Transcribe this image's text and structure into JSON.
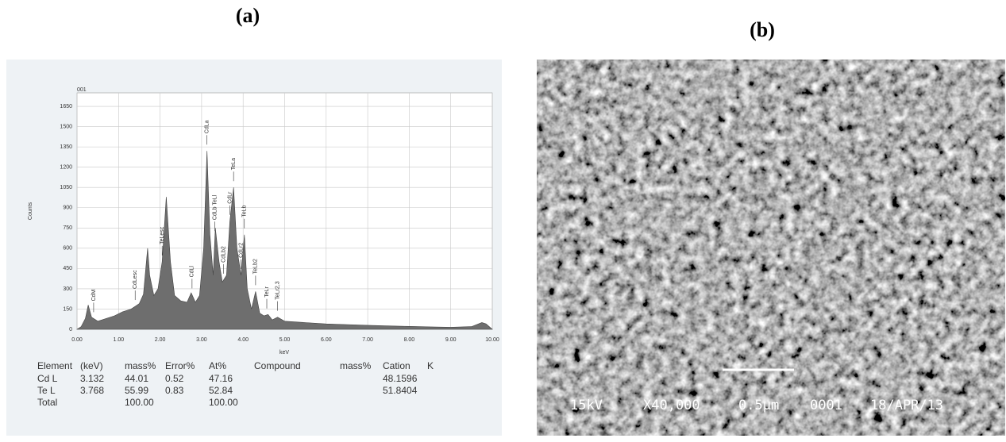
{
  "panel_a": {
    "label": "(a)"
  },
  "panel_b": {
    "label": "(b)",
    "sem_info": [
      "15kV",
      "X40,000",
      "0.5μm",
      "0001",
      "18/APR/13"
    ]
  },
  "chart_data": {
    "type": "area",
    "title": "001",
    "x_label": "keV",
    "y_label": "Counts",
    "color": "#6e6e6e",
    "grid": true,
    "xlim": [
      0,
      10
    ],
    "ylim": [
      0,
      1750
    ],
    "xticks": [
      {
        "value": 0,
        "label": "0.00"
      },
      {
        "value": 1,
        "label": "1.00"
      },
      {
        "value": 2,
        "label": "2.00"
      },
      {
        "value": 3,
        "label": "3.00"
      },
      {
        "value": 4,
        "label": "4.00"
      },
      {
        "value": 5,
        "label": "5.00"
      },
      {
        "value": 6,
        "label": "6.00"
      },
      {
        "value": 7,
        "label": "7.00"
      },
      {
        "value": 8,
        "label": "8.00"
      },
      {
        "value": 9,
        "label": "9.00"
      },
      {
        "value": 10,
        "label": "10.00"
      }
    ],
    "yticks": [
      0,
      150,
      300,
      450,
      600,
      750,
      900,
      1050,
      1200,
      1350,
      1500,
      1650
    ],
    "x": [
      0,
      0.1,
      0.2,
      0.27,
      0.35,
      0.5,
      0.7,
      0.9,
      1.1,
      1.3,
      1.4,
      1.5,
      1.6,
      1.7,
      1.75,
      1.85,
      1.95,
      2.05,
      2.15,
      2.25,
      2.35,
      2.5,
      2.65,
      2.75,
      2.85,
      2.95,
      3.05,
      3.13,
      3.2,
      3.28,
      3.33,
      3.42,
      3.5,
      3.6,
      3.68,
      3.77,
      3.85,
      3.95,
      4.03,
      4.1,
      4.2,
      4.3,
      4.4,
      4.5,
      4.6,
      4.7,
      4.83,
      5,
      5.5,
      6,
      6.5,
      7,
      7.5,
      8,
      8.5,
      9,
      9.5,
      9.75,
      9.85,
      10
    ],
    "values": [
      0,
      20,
      80,
      180,
      90,
      60,
      80,
      100,
      130,
      150,
      170,
      190,
      260,
      600,
      400,
      250,
      300,
      500,
      980,
      500,
      250,
      210,
      200,
      270,
      200,
      250,
      600,
      1320,
      700,
      400,
      750,
      500,
      350,
      400,
      800,
      1050,
      600,
      400,
      700,
      300,
      150,
      280,
      120,
      100,
      110,
      70,
      90,
      60,
      50,
      40,
      35,
      30,
      25,
      22,
      18,
      15,
      20,
      50,
      40,
      0
    ],
    "annotations": [
      {
        "text": "CdM",
        "x": 0.4
      },
      {
        "text": "CdLesc",
        "x": 1.4
      },
      {
        "text": "TeLesc",
        "x": 2.05
      },
      {
        "text": "CdLl",
        "x": 2.77
      },
      {
        "text": "CdLa",
        "x": 3.13
      },
      {
        "text": "CdLb TeLl",
        "x": 3.32
      },
      {
        "text": "CdLb2",
        "x": 3.53
      },
      {
        "text": "CdLr",
        "x": 3.68
      },
      {
        "text": "TeLa",
        "x": 3.77
      },
      {
        "text": "CdLr2",
        "x": 3.95
      },
      {
        "text": "TeLb",
        "x": 4.03
      },
      {
        "text": "TeLb2",
        "x": 4.3
      },
      {
        "text": "TeLr",
        "x": 4.57
      },
      {
        "text": "TeLr2,3",
        "x": 4.83
      }
    ]
  },
  "table": {
    "header": [
      "Element",
      "(keV)",
      "mass%",
      "Error%",
      "At%",
      "Compound",
      "mass%",
      "Cation",
      "K"
    ],
    "rows": [
      [
        "Cd L",
        "3.132",
        "44.01",
        "0.52",
        "47.16",
        "48.1596"
      ],
      [
        "Te L",
        "3.768",
        "55.99",
        "0.83",
        "52.84",
        "51.8404"
      ],
      [
        "Total",
        "100.00",
        "100.00"
      ]
    ]
  }
}
